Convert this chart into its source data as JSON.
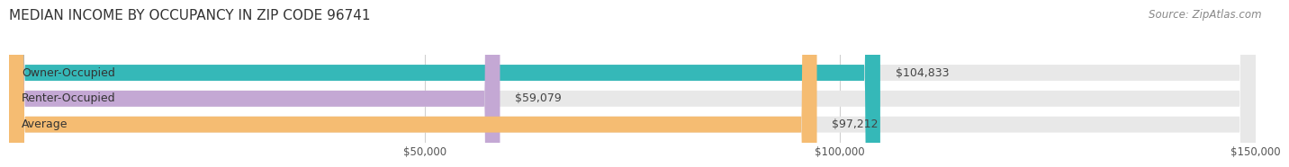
{
  "title": "MEDIAN INCOME BY OCCUPANCY IN ZIP CODE 96741",
  "source": "Source: ZipAtlas.com",
  "categories": [
    "Owner-Occupied",
    "Renter-Occupied",
    "Average"
  ],
  "values": [
    104833,
    59079,
    97212
  ],
  "labels": [
    "$104,833",
    "$59,079",
    "$97,212"
  ],
  "bar_colors": [
    "#35b8b8",
    "#c4a8d4",
    "#f5bc72"
  ],
  "bar_bg_color": "#e8e8e8",
  "xlim": [
    0,
    150000
  ],
  "xtick_positions": [
    50000,
    100000,
    150000
  ],
  "xtick_labels": [
    "$50,000",
    "$100,000",
    "$150,000"
  ],
  "title_fontsize": 11,
  "source_fontsize": 8.5,
  "label_fontsize": 9,
  "bar_height": 0.62,
  "background_color": "#ffffff",
  "grid_color": "#d0d0d0"
}
